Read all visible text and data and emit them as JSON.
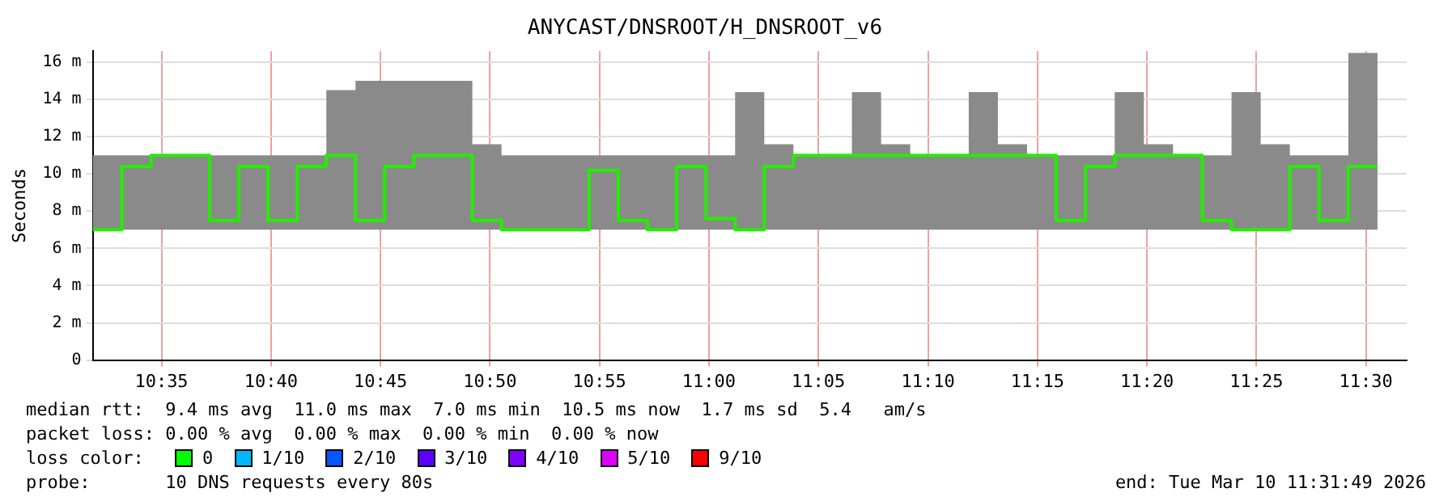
{
  "chart_data": {
    "type": "step",
    "title": "ANYCAST/DNSROOT/H_DNSROOT_v6",
    "ylabel": "Seconds",
    "x": [
      10.531,
      10.5532,
      10.5754,
      10.5977,
      10.6199,
      10.6421,
      10.6643,
      10.6866,
      10.7088,
      10.731,
      10.7532,
      10.7754,
      10.7977,
      10.8199,
      10.8421,
      10.8643,
      10.8866,
      10.9088,
      10.931,
      10.9532,
      10.9754,
      10.9977,
      11.0199,
      11.0421,
      11.0643,
      11.0866,
      11.1088,
      11.131,
      11.1532,
      11.1754,
      11.1977,
      11.2199,
      11.2421,
      11.2643,
      11.2866,
      11.3088,
      11.331,
      11.3532,
      11.3754,
      11.3977,
      11.4199,
      11.4421,
      11.4643,
      11.4866,
      11.5088
    ],
    "series": [
      {
        "color": "#22ee00",
        "values": [
          7.0,
          10.4,
          11.0,
          11.0,
          7.5,
          10.4,
          7.5,
          10.4,
          11.0,
          7.5,
          10.4,
          11.0,
          11.0,
          7.5,
          7.0,
          7.0,
          7.0,
          10.2,
          7.5,
          7.0,
          10.4,
          7.6,
          7.0,
          10.4,
          11.0,
          11.0,
          11.0,
          11.0,
          11.0,
          11.0,
          11.0,
          11.0,
          11.0,
          7.5,
          10.4,
          11.0,
          11.0,
          11.0,
          7.5,
          7.0,
          7.0,
          10.4,
          7.5,
          10.4,
          10.4
        ],
        "lower": [
          7.0,
          7.0,
          7.0,
          7.0,
          7.0,
          7.0,
          7.0,
          7.0,
          7.0,
          7.0,
          7.0,
          7.0,
          7.0,
          7.0,
          7.0,
          7.0,
          7.0,
          7.0,
          7.0,
          7.0,
          7.0,
          7.0,
          7.0,
          7.0,
          7.0,
          7.0,
          7.0,
          7.0,
          7.0,
          7.0,
          7.0,
          7.0,
          7.0,
          7.0,
          7.0,
          7.0,
          7.0,
          7.0,
          7.0,
          7.0,
          7.0,
          7.0,
          7.0,
          7.0,
          7.0
        ],
        "upper": [
          11.0,
          11.0,
          11.0,
          11.0,
          11.0,
          11.0,
          11.0,
          11.0,
          14.5,
          15.0,
          15.0,
          15.0,
          15.0,
          11.6,
          11.0,
          11.0,
          11.0,
          11.0,
          11.0,
          11.0,
          11.0,
          11.0,
          14.4,
          11.6,
          11.0,
          11.0,
          14.4,
          11.6,
          11.0,
          11.0,
          14.4,
          11.6,
          11.0,
          11.0,
          11.0,
          14.4,
          11.6,
          11.0,
          11.0,
          14.4,
          11.6,
          11.0,
          11.0,
          16.5,
          16.5
        ]
      }
    ],
    "xlim": [
      10.531,
      11.531
    ],
    "xticks": [
      {
        "value": 10.58333,
        "label": "10:35"
      },
      {
        "value": 10.66667,
        "label": "10:40"
      },
      {
        "value": 10.75,
        "label": "10:45"
      },
      {
        "value": 10.83333,
        "label": "10:50"
      },
      {
        "value": 10.91667,
        "label": "10:55"
      },
      {
        "value": 11.0,
        "label": "11:00"
      },
      {
        "value": 11.08333,
        "label": "11:05"
      },
      {
        "value": 11.16667,
        "label": "11:10"
      },
      {
        "value": 11.25,
        "label": "11:15"
      },
      {
        "value": 11.33333,
        "label": "11:20"
      },
      {
        "value": 11.41667,
        "label": "11:25"
      },
      {
        "value": 11.5,
        "label": "11:30"
      }
    ],
    "ylim": [
      0,
      16.6
    ],
    "yticks": [
      0,
      {
        "value": 2,
        "label": "2 m"
      },
      {
        "value": 4,
        "label": "4 m"
      },
      {
        "value": 6,
        "label": "6 m"
      },
      {
        "value": 8,
        "label": "8 m"
      },
      {
        "value": 10,
        "label": "10 m"
      },
      {
        "value": 12,
        "label": "12 m"
      },
      {
        "value": 14,
        "label": "14 m"
      },
      {
        "value": 16,
        "label": "16 m"
      }
    ],
    "grid": true,
    "legend": false,
    "marker": "none",
    "line_style": "solid",
    "annotations": [
      "median rtt:  9.4 ms avg  11.0 ms max  7.0 ms min  10.5 ms now  1.7 ms sd  5.4   am/s",
      "packet loss: 0.00 % avg  0.00 % max  0.00 % min  0.00 % now",
      "loss color:",
      "0",
      "1/10",
      "2/10",
      "3/10",
      "4/10",
      "5/10",
      "9/10",
      "probe:       10 DNS requests every 80s",
      "end: Tue Mar 10 11:31:49 2026"
    ]
  }
}
